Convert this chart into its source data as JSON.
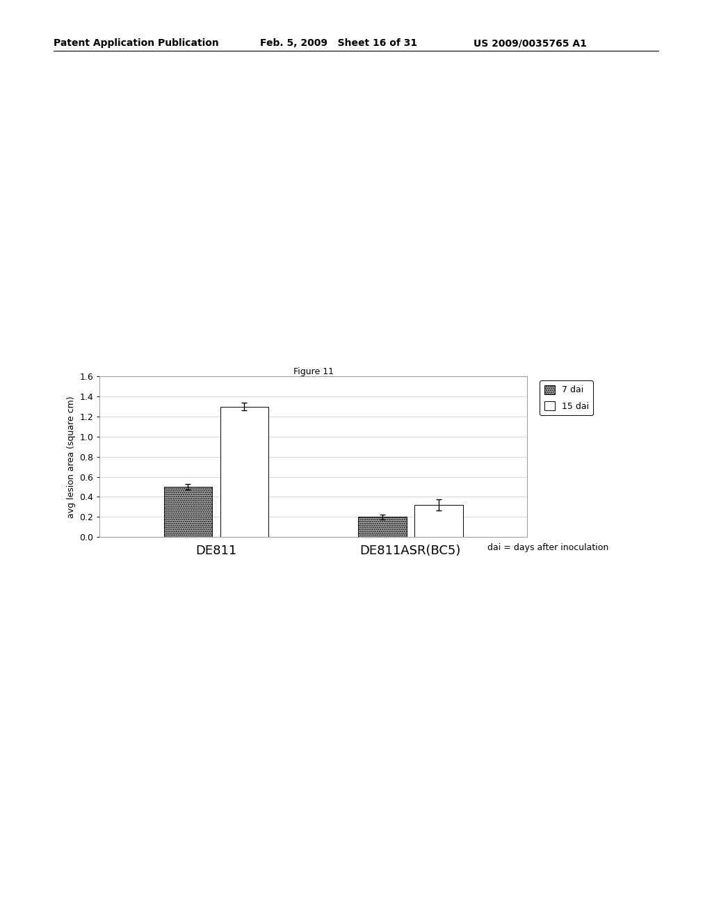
{
  "figure_caption": "Figure 11",
  "header_left": "Patent Application Publication",
  "header_mid": "Feb. 5, 2009   Sheet 16 of 31",
  "header_right": "US 2009/0035765 A1",
  "groups": [
    "DE811",
    "DE811ASR(BC5)"
  ],
  "series": [
    "7 dai",
    "15 dai"
  ],
  "values": [
    [
      0.5,
      1.3
    ],
    [
      0.2,
      0.32
    ]
  ],
  "errors": [
    [
      0.025,
      0.04
    ],
    [
      0.025,
      0.055
    ]
  ],
  "bar_colors": [
    "#b0b0b0",
    "#ffffff"
  ],
  "bar_hatch": [
    "......",
    ""
  ],
  "ylabel": "avg lesion area (square cm)",
  "ylim": [
    0,
    1.6
  ],
  "yticks": [
    0,
    0.2,
    0.4,
    0.6,
    0.8,
    1.0,
    1.2,
    1.4,
    1.6
  ],
  "note": "dai = days after inoculation",
  "background_color": "#ffffff",
  "grid_color": "#c8c8c8",
  "header_fontsize": 10,
  "caption_fontsize": 9,
  "axis_fontsize": 9,
  "label_fontsize": 13,
  "note_fontsize": 9,
  "legend_fontsize": 9
}
